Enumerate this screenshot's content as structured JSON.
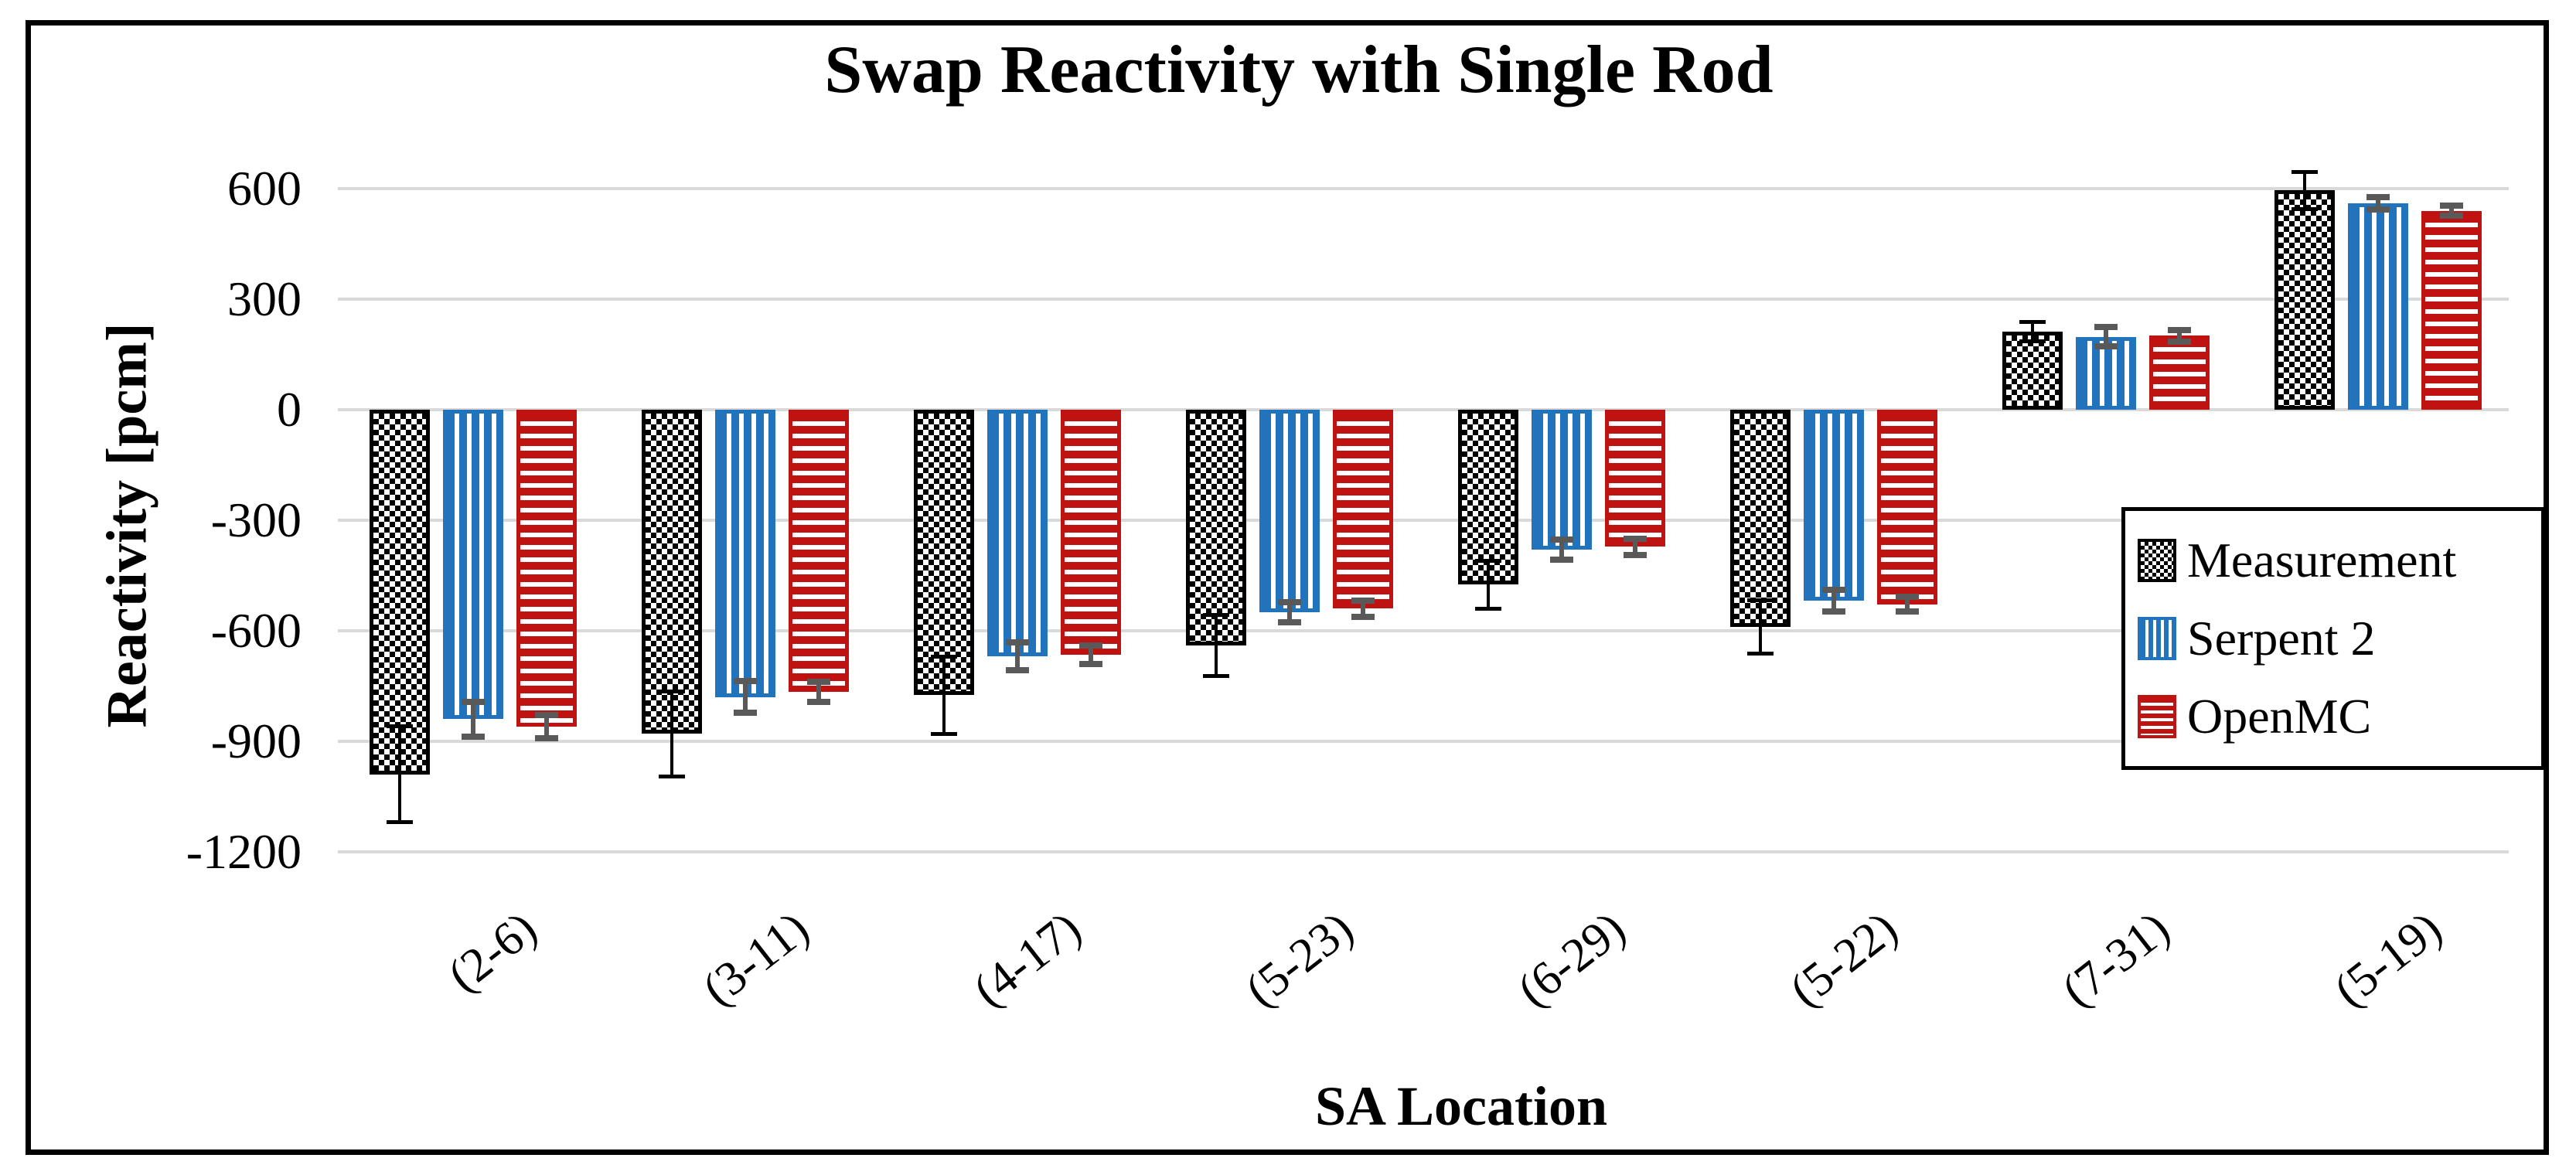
{
  "chart_data": {
    "type": "bar",
    "title": "Swap Reactivity with Single Rod",
    "xlabel": "SA Location",
    "ylabel": "Reactivity [pcm]",
    "categories": [
      "(2-6)",
      "(3-11)",
      "(4-17)",
      "(5-23)",
      "(6-29)",
      "(5-22)",
      "(7-31)",
      "(5-19)"
    ],
    "y_ticks": [
      600,
      300,
      0,
      -300,
      -600,
      -900,
      -1200
    ],
    "ylim": [
      -1300,
      700
    ],
    "grid": true,
    "legend_position": "inside-right",
    "gridline_color": "#D9D9D9",
    "background": "#FFFFFF",
    "border_color": "#000000",
    "error_bar_gray": "#595959",
    "series": [
      {
        "name": "Measurement",
        "pattern": "checkerboard",
        "color": "#000000",
        "error_color": "#000000",
        "values": [
          -990,
          -880,
          -775,
          -640,
          -475,
          -590,
          212,
          595
        ],
        "errors": [
          130,
          115,
          105,
          82,
          65,
          72,
          26,
          50
        ]
      },
      {
        "name": "Serpent 2",
        "pattern": "vertical-stripes",
        "color": "#2173BC",
        "error_color": "#595959",
        "values": [
          -840,
          -780,
          -670,
          -550,
          -380,
          -518,
          198,
          560
        ],
        "errors": [
          47,
          43,
          38,
          27,
          28,
          30,
          27,
          17
        ]
      },
      {
        "name": "OpenMC",
        "pattern": "horizontal-stripes",
        "color": "#C11212",
        "error_color": "#595959",
        "values": [
          -860,
          -765,
          -665,
          -540,
          -372,
          -528,
          201,
          540
        ],
        "errors": [
          31,
          27,
          26,
          22,
          22,
          20,
          16,
          14
        ]
      }
    ]
  }
}
